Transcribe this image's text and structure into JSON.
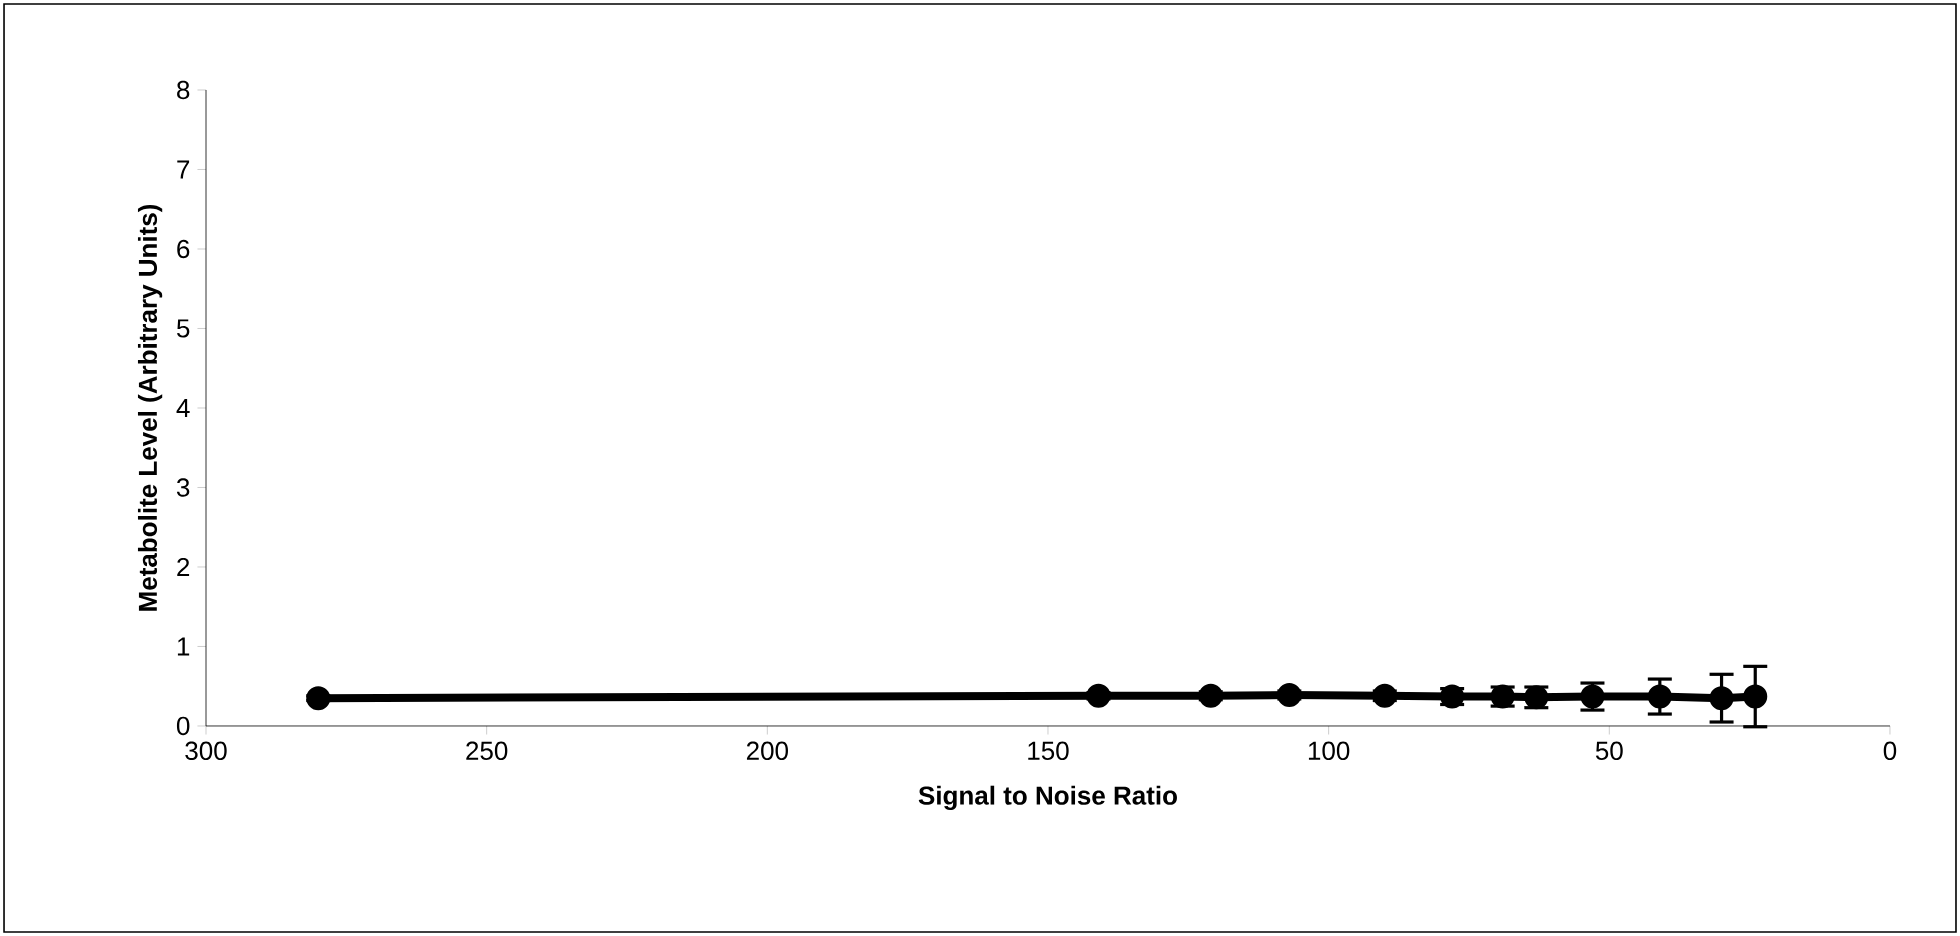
{
  "chart_data": {
    "type": "line",
    "xlabel": "Signal to Noise Ratio",
    "ylabel": "Metabolite Level (Arbitrary Units)",
    "x": [
      280,
      141,
      121,
      107,
      90,
      78,
      69,
      63,
      53,
      41,
      30,
      24
    ],
    "series": [
      {
        "color": "#000000",
        "values": [
          0.35,
          0.38,
          0.38,
          0.39,
          0.38,
          0.37,
          0.37,
          0.36,
          0.37,
          0.37,
          0.35,
          0.37
        ],
        "errors": [
          0.03,
          0.04,
          0.05,
          0.05,
          0.06,
          0.1,
          0.12,
          0.13,
          0.17,
          0.22,
          0.3,
          0.38
        ]
      }
    ],
    "xlim": [
      300,
      0
    ],
    "ylim": [
      0,
      8
    ],
    "xticks": [
      300,
      250,
      200,
      150,
      100,
      50,
      0
    ],
    "yticks": [
      0,
      1,
      2,
      3,
      4,
      5,
      6,
      7,
      8
    ],
    "marker": "circle",
    "line_style": "solid",
    "grid": false,
    "legend": false
  }
}
